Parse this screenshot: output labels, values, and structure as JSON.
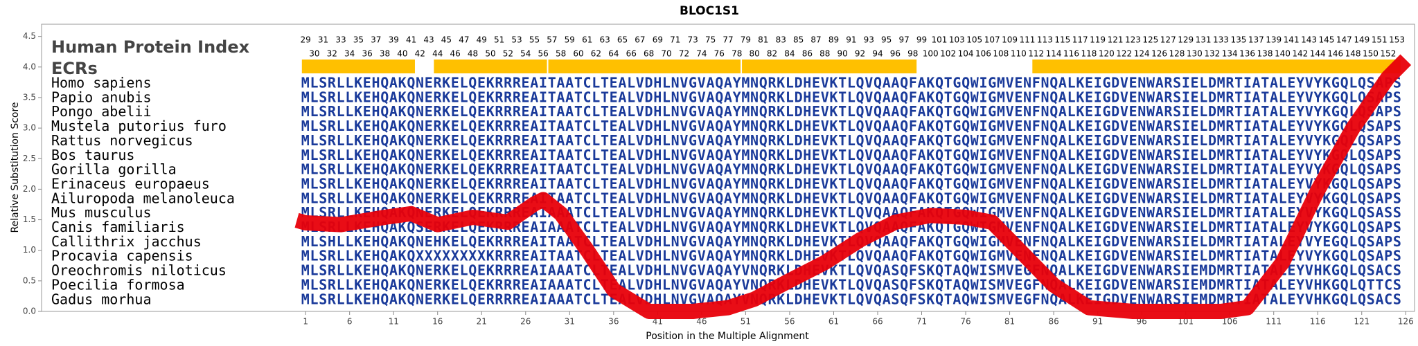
{
  "chart_data": {
    "type": "line",
    "title": "BLOC1S1",
    "xlabel": "Position in the Multiple Alignment",
    "ylabel": "Relative Substitution Score",
    "xlim": [
      -29,
      127
    ],
    "ylim": [
      0,
      4.7
    ],
    "xticks": [
      1,
      6,
      11,
      16,
      21,
      26,
      31,
      36,
      41,
      46,
      51,
      56,
      61,
      66,
      71,
      76,
      81,
      86,
      91,
      96,
      101,
      106,
      111,
      116,
      121,
      126
    ],
    "yticks": [
      {
        "value": 0,
        "label": "0.0"
      },
      0.5,
      {
        "value": 1,
        "label": "1.0"
      },
      1.5,
      {
        "value": 2,
        "label": "2.0"
      },
      2.5,
      {
        "value": 3,
        "label": "3.0"
      },
      3.5,
      {
        "value": 4,
        "label": "4.0"
      },
      4.5
    ],
    "series": [
      {
        "color": "#e8000a",
        "x": [
          0,
          1,
          5,
          10,
          13,
          16,
          20,
          24,
          27,
          28,
          30,
          33,
          36,
          40,
          45,
          49,
          52,
          55,
          60,
          64,
          68,
          72,
          76,
          79,
          82,
          86,
          90,
          95,
          100,
          105,
          108,
          112,
          116,
          120,
          124,
          126
        ],
        "values": [
          1.49,
          1.45,
          1.42,
          1.54,
          1.6,
          1.42,
          1.54,
          1.46,
          1.76,
          1.83,
          1.6,
          1.0,
          0.35,
          0,
          0,
          0.06,
          0.2,
          0.43,
          0.8,
          1.17,
          1.46,
          1.57,
          1.54,
          1.46,
          1.02,
          0.43,
          0.06,
          0,
          0,
          0,
          0.06,
          0.8,
          1.98,
          3.0,
          3.83,
          4.12
        ]
      }
    ],
    "panel_title": "Human Protein Index",
    "ecr_label": "ECRs",
    "ecr_color": "#ffc000",
    "sequence_color": "#1a3a9a",
    "protein_index": [
      29,
      30,
      31,
      32,
      33,
      34,
      35,
      36,
      37,
      38,
      39,
      40,
      41,
      42,
      43,
      44,
      45,
      46,
      47,
      48,
      49,
      50,
      51,
      52,
      53,
      54,
      55,
      56,
      57,
      58,
      59,
      60,
      61,
      62,
      63,
      64,
      65,
      66,
      67,
      68,
      69,
      70,
      71,
      72,
      73,
      74,
      75,
      76,
      77,
      78,
      79,
      80,
      81,
      82,
      83,
      84,
      85,
      86,
      87,
      88,
      89,
      90,
      91,
      92,
      93,
      94,
      95,
      96,
      97,
      98,
      99,
      100,
      101,
      102,
      103,
      104,
      105,
      106,
      107,
      108,
      109,
      110,
      111,
      112,
      113,
      114,
      115,
      116,
      117,
      118,
      119,
      120,
      121,
      122,
      123,
      124,
      125,
      126,
      127,
      128,
      129,
      130,
      131,
      132,
      133,
      134,
      135,
      136,
      137,
      138,
      139,
      140,
      141,
      142,
      143,
      144,
      145,
      146,
      147,
      148,
      149,
      150,
      151,
      152,
      153
    ],
    "ecrs": [
      {
        "start": 1,
        "end": 13
      },
      {
        "start": 16,
        "end": 28
      },
      {
        "start": 29,
        "end": 50
      },
      {
        "start": 51,
        "end": 70
      },
      {
        "start": 84,
        "end": 125
      }
    ],
    "alignment": [
      {
        "species": "Homo sapiens",
        "sequence": "MLSRLLKEHQAKQNERKELQEKRRREAITAATCLTEALVDHLNVGVAQAYMNQRKLDHEVKTLQVQAAQFAKQTGQWIGMVENFNQALKEIGDVENWARSIELDMRTIATALEYVYKGQLQSAPS"
      },
      {
        "species": "Papio anubis",
        "sequence": "MLSRLLKEHQAKQNERKELQEKRRREAITAATCLTEALVDHLNVGVAQAYMNQRKLDHEVKTLQVQAAQFAKQTGQWIGMVENFNQALKEIGDVENWARSIELDMRTIATALEYVYKGQLQSAPS"
      },
      {
        "species": "Pongo abelii",
        "sequence": "MLSRLLKEHQAKQNERKELQEKRRREAITAATCLTEALVDHLNVGVAQAYMNQRKLDHEVKTLQVQAAQFAKQTGQWIGMVENFNQALKEIGDVENWARSIELDMRTIATALEYVYKGQLQSAPS"
      },
      {
        "species": "Mustela putorius furo",
        "sequence": "MLSRLLKEHQAKQNERKELQEKRRREAITAATCLTEALVDHLNVGVAQAYMNQRKLDHEVKTLQVQAAQFAKQTGQWIGMVENFNQALKEIGDVENWARSIELDMRTIATALEYVYKGQLQSAPS"
      },
      {
        "species": "Rattus norvegicus",
        "sequence": "MLSRLLKEHQAKQNERKELQEKRRREAITAATCLTEALVDHLNVGVAQAYMNQRKLDHEVKTLQVQAAQFAKQTGQWIGMVENFNQALKEIGDVENWARSIELDMRTIATALEYVYKGQLQSAPS"
      },
      {
        "species": "Bos taurus",
        "sequence": "MLSRLLKEHQAKQNERKELQEKRRREAITAATCLTEALVDHLNVGVAQAYMNQRKLDHEVKTLQVQAAQFAKQTGQWIGMVENFNQALKEIGDVENWARSIELDMRTIATALEYVYKGQLQSAPS"
      },
      {
        "species": "Gorilla gorilla",
        "sequence": "MLSRLLKEHQAKQNERKELQEKRRREAITAATCLTEALVDHLNVGVAQAYMNQRKLDHEVKTLQVQAAQFAKQTGQWIGMVENFNQALKEIGDVENWARSIELDMRTIATALEYVYKGQLQSAPS"
      },
      {
        "species": "Erinaceus europaeus",
        "sequence": "MLSRLLKEHQAKQNERKELQEKRRREAITAATCLTEALVDHLNVGVAQAYMNQRKLDHEVKTLQVQAAQFAKQTGQWIGMVENFNQALKEIGDVENWARSIELDMRTIATALEYVYKGQLQSAPS"
      },
      {
        "species": "Ailuropoda melanoleuca",
        "sequence": "MLSRLLKEHQAKQNERKELQEKRRREAITAATCLTEALVDHLNVGVAQAYMNQRKLDHEVKTLQVQAAQFAKQTGQWIGMVENFNQALKEIGDVENWARSIELDMRTIATALEYVYKGQLQSAPS"
      },
      {
        "species": "Mus musculus",
        "sequence": "MLSRLLKEHQAKQNERKELQEKRRREAIAAATCLTEALVDHLNVGVAQAYMNQRKLDHEVKTLQVQAAQFAKQTGQWIGMVENFNQALKEIGDVENWARSIELDMRTIATALEYVYKGQLQSASS"
      },
      {
        "species": "Canis familiaris",
        "sequence": "MLSRLLKEHQAKQSERKELQEKRRREAIAAATCLTEALVDHLNVGVAQAYMNQRKLDHEVKTLQVQAAQFAKQTGQWIGMVENFNQALKEIGDVENWARSIELDMRTIATALEYVYKGQLQSAPS"
      },
      {
        "species": "Callithrix jacchus",
        "sequence": "MLSHLLKEHQAKQNEHKELQEKRRREAITAATCLTEALVDHLNVGVAQAYMNQRKLDHEVKTLQVQAAQFAKQTGQWIGMVENFNQALKEIGDVENWARSIELDMRTIATALEYVYEGQLQSAPS"
      },
      {
        "species": "Procavia capensis",
        "sequence": "MLSRLLKEHQAKQXXXXXXXXKRRREAITAATCLTEALVDHLNVGVAQAYMNQRKLDHEVKTLQVQAAQFAKQTGQWIGMVENFNQALKEIGDVENWARSIELDMRTIATALEYVYKGQLQSAPS"
      },
      {
        "species": "Oreochromis niloticus",
        "sequence": "MLSRLLKEHQAKQNERKELQEKRRREAIAAATCLTEALVDHLNVGVAQAYVNQRKLDHEVKTLQVQASQFSKQTAQWISMVEGFNQALKEIGDVENWARSIEMDMRTIATALEYVHKGQLQSACS"
      },
      {
        "species": "Poecilia formosa",
        "sequence": "MLSRLLKEHQAKQNERKELQEKRRREAIAAATCLTEALVDHLNVGVAQAYVNQRKLDHEVKTLQVQASQFSKQTAQWISMVEGFNQALKEIGDVENWARSIEMDMRTIATALEYVHKGQLQTTCS"
      },
      {
        "species": "Gadus morhua",
        "sequence": "MLSRLLKEHQAKQNERKELQERRRREAIAAATCLTEALVDHLNVGVAQAYVNQRKLDHEVKTLQVQASQFSKQTAQWISMVEGFNQALKEIGDVENWARSIEMDMRTIATALEYVHKGQLQSACS"
      }
    ]
  }
}
